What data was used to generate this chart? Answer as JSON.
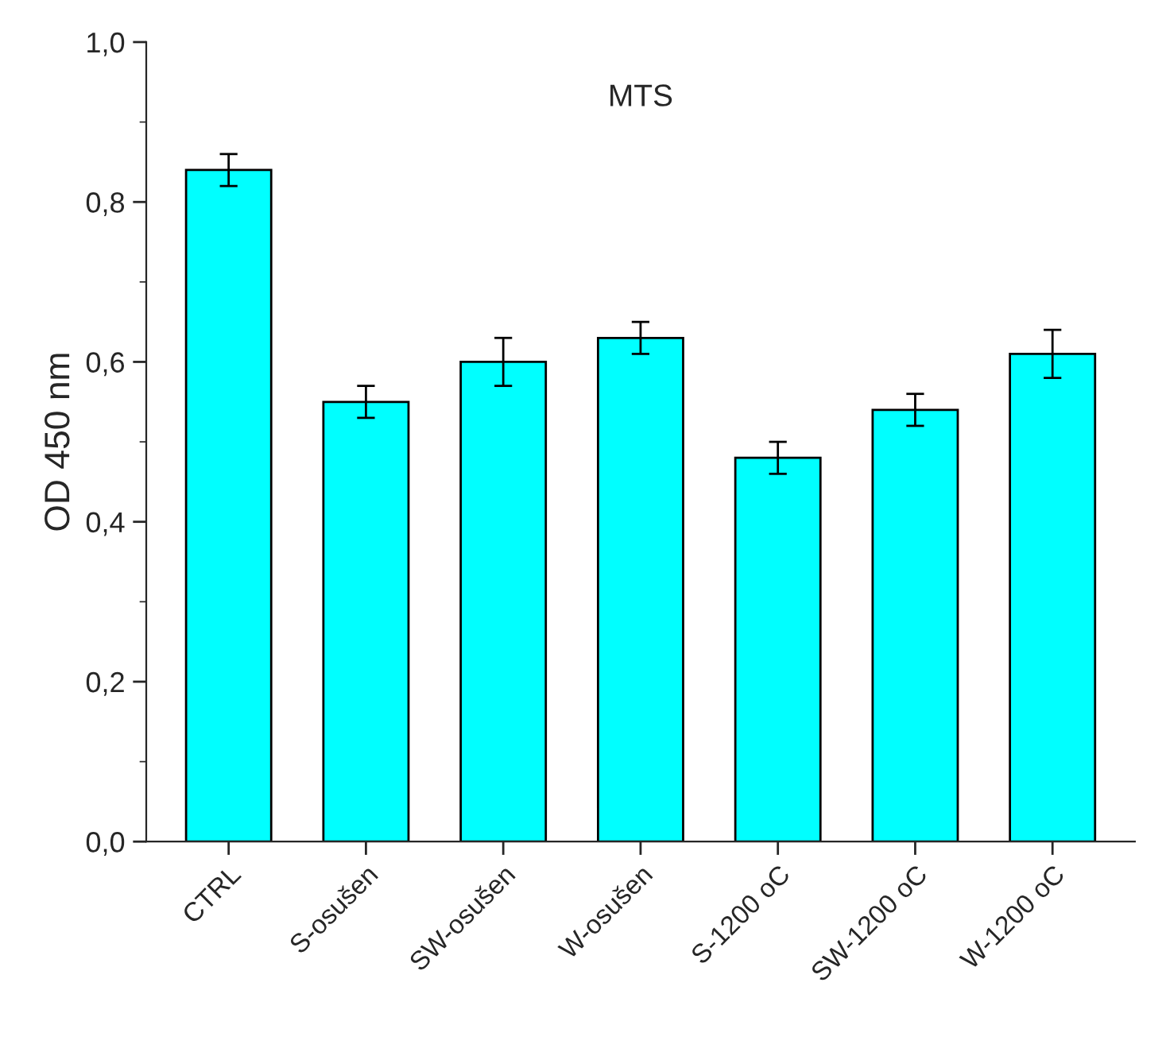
{
  "chart_data": {
    "type": "bar",
    "title": "MTS",
    "ylabel": "OD 450 nm",
    "categories": [
      "CTRL",
      "S-osušen",
      "SW-osušen",
      "W-osušen",
      "S-1200 oC",
      "SW-1200 oC",
      "W-1200 oC"
    ],
    "values": [
      0.84,
      0.55,
      0.6,
      0.63,
      0.48,
      0.54,
      0.61
    ],
    "errors": [
      0.02,
      0.02,
      0.03,
      0.02,
      0.02,
      0.02,
      0.03
    ],
    "color": "#00ffff",
    "ylim": [
      0,
      1.0
    ],
    "yticks": [
      {
        "value": 0,
        "label": "0,0"
      },
      {
        "value": 0.2,
        "label": "0,2"
      },
      {
        "value": 0.4,
        "label": "0,4"
      },
      {
        "value": 0.6,
        "label": "0,6"
      },
      {
        "value": 0.8,
        "label": "0,8"
      },
      {
        "value": 1.0,
        "label": "1,0"
      }
    ],
    "grid": false,
    "legend": false
  }
}
